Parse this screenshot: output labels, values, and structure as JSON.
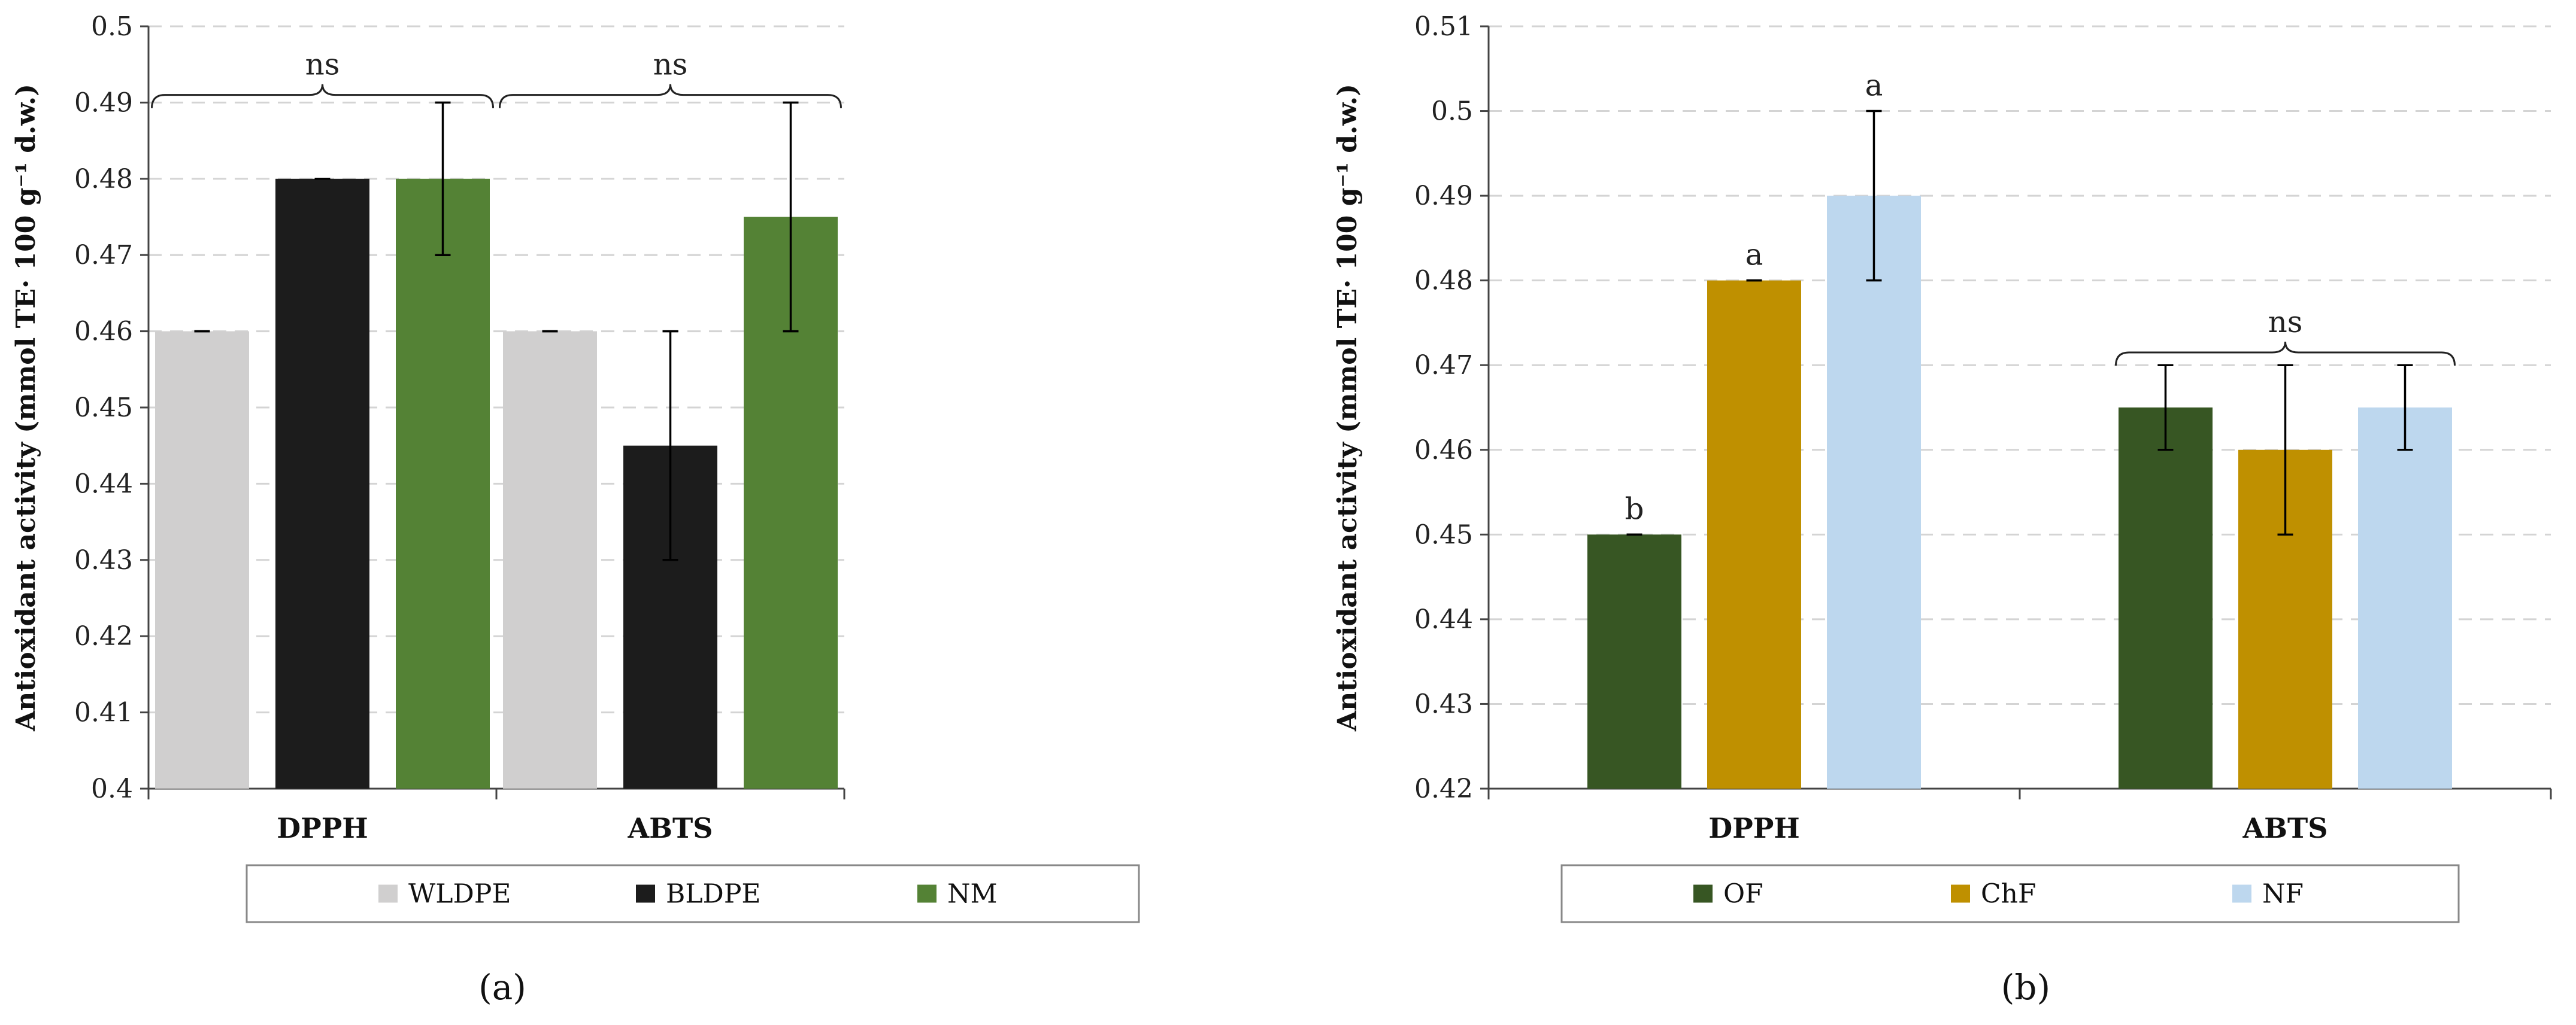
{
  "chart_data": [
    {
      "type": "bar",
      "panel_label": "(a)",
      "ylabel": "Antioxidant activity (mmol TE· 100 g⁻¹ d.w.)",
      "ylim": [
        0.4,
        0.5
      ],
      "yticks": [
        "0.4",
        "0.41",
        "0.42",
        "0.43",
        "0.44",
        "0.45",
        "0.46",
        "0.47",
        "0.48",
        "0.49",
        "0.5"
      ],
      "categories": [
        "DPPH",
        "ABTS"
      ],
      "series": [
        {
          "name": "WLDPE",
          "color": "#d0cfcf",
          "values": [
            0.46,
            0.46
          ],
          "errors": [
            0.0,
            0.0
          ]
        },
        {
          "name": "BLDPE",
          "color": "#1c1c1c",
          "values": [
            0.48,
            0.445
          ],
          "errors": [
            0.0,
            0.015
          ]
        },
        {
          "name": "NM",
          "color": "#548235",
          "values": [
            0.48,
            0.475
          ],
          "errors": [
            0.01,
            0.015
          ]
        }
      ],
      "annotations": [
        {
          "category": 0,
          "text": "ns",
          "bracket": true,
          "level": 0.491
        },
        {
          "category": 1,
          "text": "ns",
          "bracket": true,
          "level": 0.491
        }
      ],
      "legend": "bottom"
    },
    {
      "type": "bar",
      "panel_label": "(b)",
      "ylabel": "Antioxidant activity (mmol TE· 100 g⁻¹ d.w.)",
      "ylim": [
        0.42,
        0.51
      ],
      "yticks": [
        "0.42",
        "0.43",
        "0.44",
        "0.45",
        "0.46",
        "0.47",
        "0.48",
        "0.49",
        "0.5",
        "0.51"
      ],
      "categories": [
        "DPPH",
        "ABTS"
      ],
      "series": [
        {
          "name": "OF",
          "color": "#375623",
          "values": [
            0.45,
            0.465
          ],
          "errors": [
            0.0,
            0.005
          ]
        },
        {
          "name": "ChF",
          "color": "#bf9000",
          "values": [
            0.48,
            0.46
          ],
          "errors": [
            0.0,
            0.01
          ]
        },
        {
          "name": "NF",
          "color": "#bdd7ee",
          "values": [
            0.49,
            0.465
          ],
          "errors": [
            0.01,
            0.005
          ]
        }
      ],
      "letters": [
        [
          "b",
          "a",
          "a"
        ],
        [
          "",
          "",
          ""
        ]
      ],
      "annotations": [
        {
          "category": 1,
          "text": "ns",
          "bracket": true,
          "level": 0.4715
        }
      ],
      "legend": "bottom"
    }
  ]
}
